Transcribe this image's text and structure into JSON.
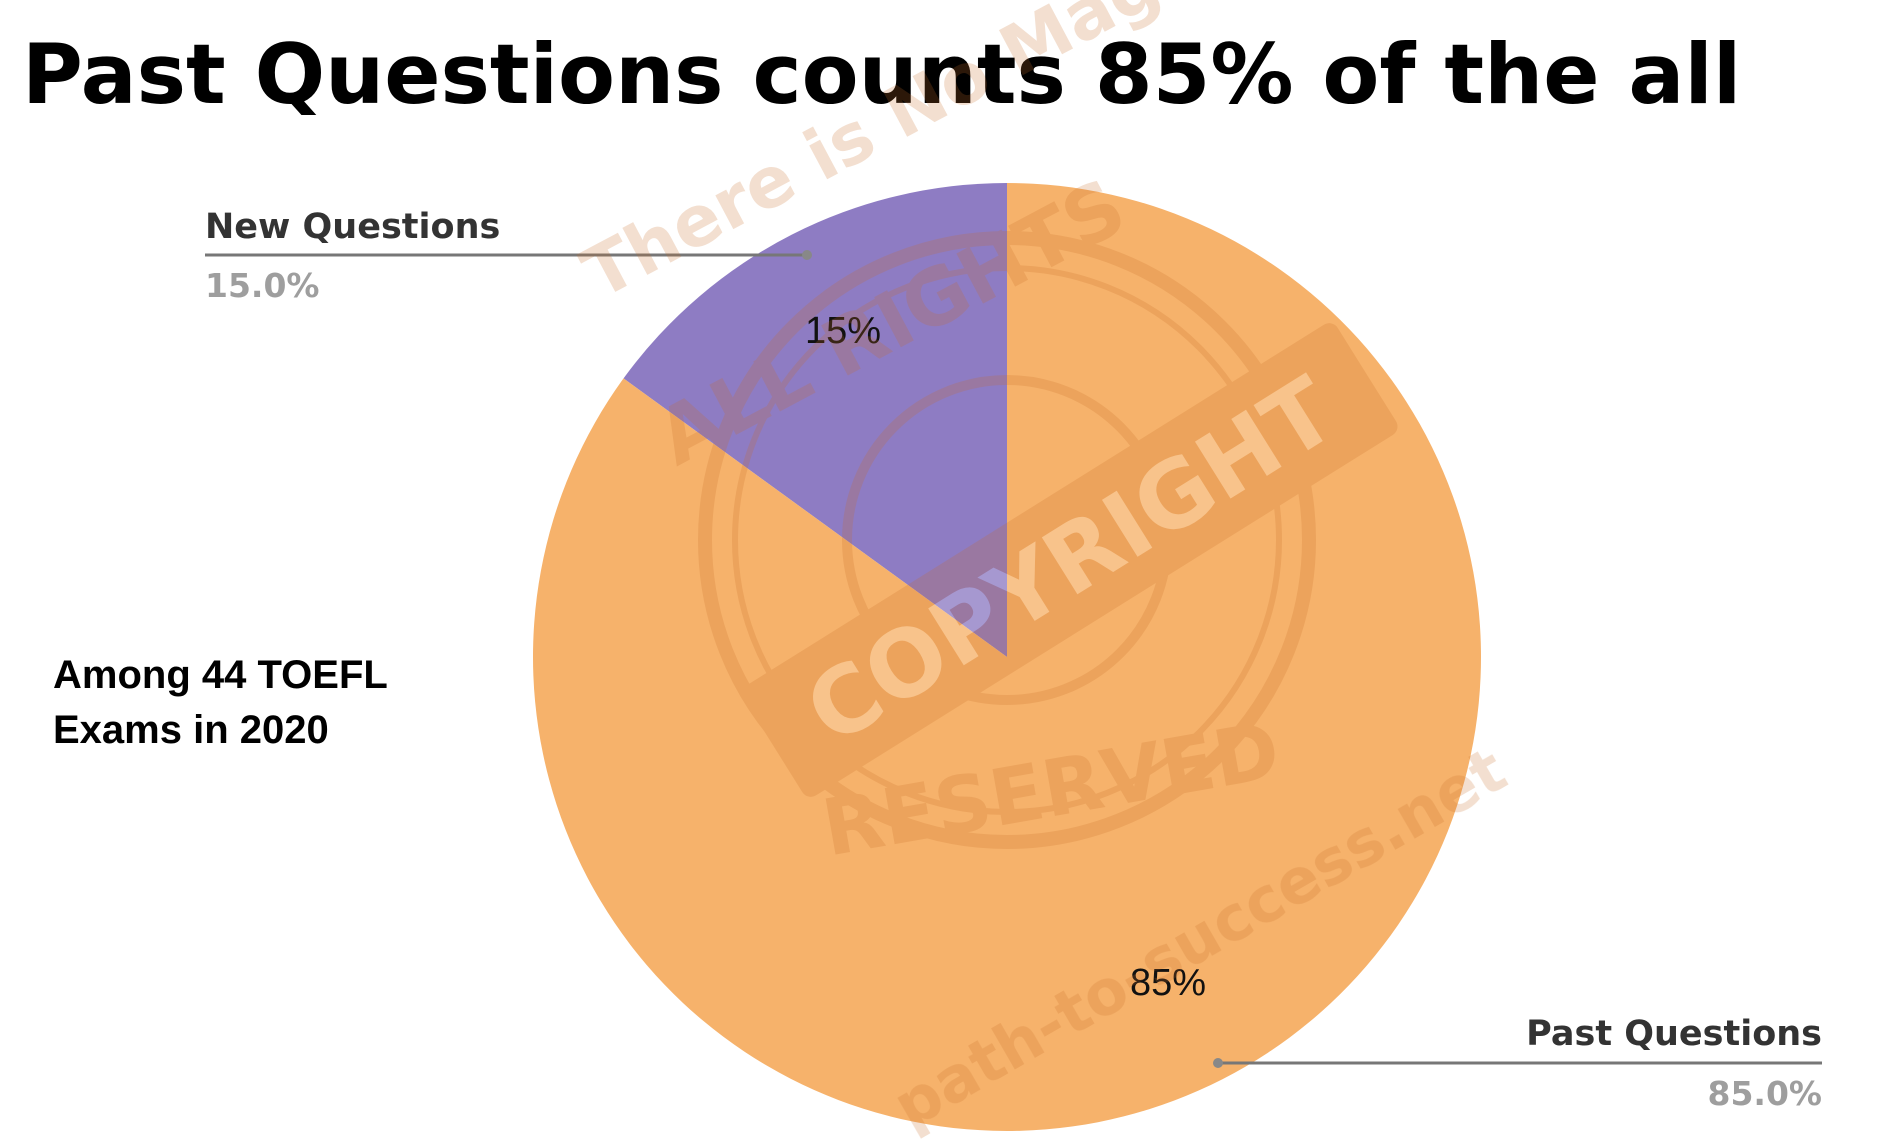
{
  "title": "Past Questions counts 85% of the all",
  "note": {
    "line1": "Among 44 TOEFL",
    "line2": "Exams in 2020"
  },
  "chart_data": {
    "type": "pie",
    "title": "Past Questions counts 85% of the all",
    "slices": [
      {
        "name": "New Questions",
        "value": 15.0,
        "legend_value": "15.0%",
        "inside_label": "15%",
        "color": "#8e7cc3"
      },
      {
        "name": "Past Questions",
        "value": 85.0,
        "legend_value": "85.0%",
        "inside_label": "85%",
        "color": "#f6b26b"
      }
    ],
    "legend": "callouts",
    "start_angle_deg": 0,
    "direction": "counterclockwise"
  },
  "watermark": {
    "stamp_top": "ALL RIGHTS",
    "stamp_center": "COPYRIGHT",
    "stamp_bottom": "RESERVED",
    "text_1": "There is No Magic",
    "text_2": "path-to-success.net",
    "color": "#c8702c"
  }
}
